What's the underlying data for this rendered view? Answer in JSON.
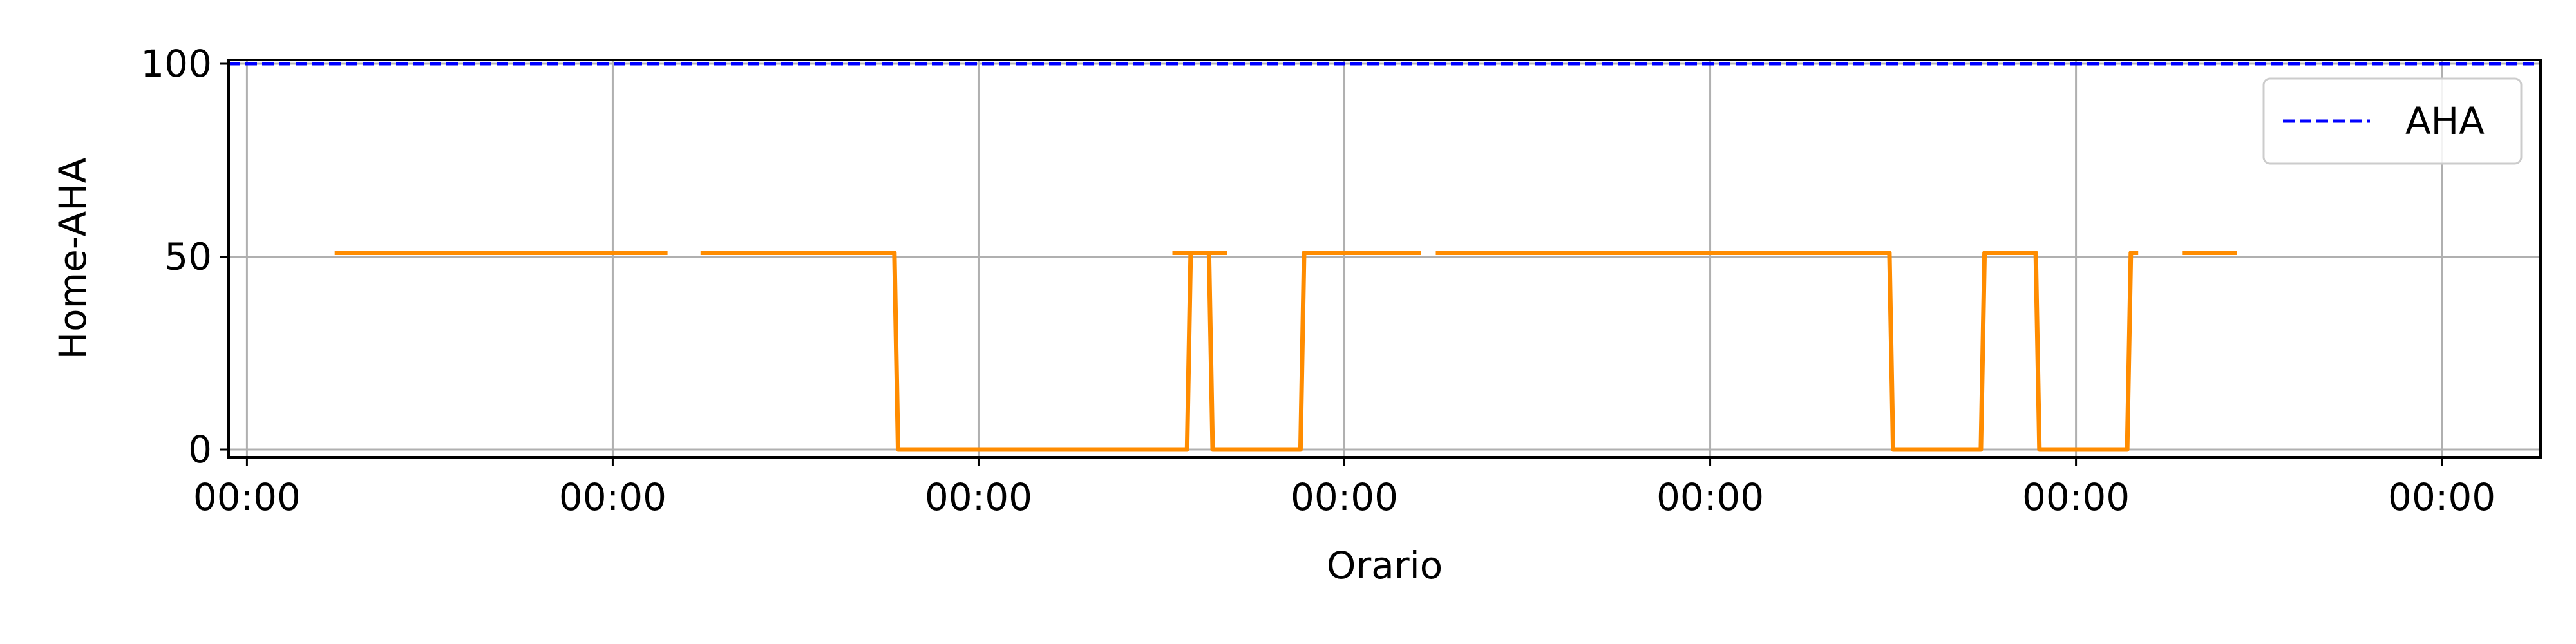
{
  "chart_data": {
    "type": "line",
    "title": "",
    "xlabel": "Orario",
    "ylabel": "Home-AHA",
    "xlim": [
      -0.05,
      6.27
    ],
    "ylim": [
      -2,
      101
    ],
    "x_ticks": [
      0,
      1,
      2,
      3,
      4,
      5,
      6
    ],
    "x_tick_labels": [
      "00:00",
      "00:00",
      "00:00",
      "00:00",
      "00:00",
      "00:00",
      "00:00"
    ],
    "y_ticks": [
      0,
      50,
      100
    ],
    "y_tick_labels": [
      "0",
      "50",
      "100"
    ],
    "grid": true,
    "legend_position": "upper right",
    "series": [
      {
        "name": "",
        "color": "#ff8c00",
        "style": "solid",
        "segments": [
          [
            [
              0.24,
              51
            ],
            [
              1.15,
              51
            ]
          ],
          [
            [
              1.24,
              51
            ],
            [
              1.77,
              51
            ],
            [
              1.78,
              0
            ],
            [
              2.57,
              0
            ],
            [
              2.58,
              51
            ],
            [
              2.68,
              51
            ]
          ],
          [
            [
              2.53,
              51
            ],
            [
              2.63,
              51
            ],
            [
              2.64,
              0
            ],
            [
              2.88,
              0
            ],
            [
              2.89,
              51
            ],
            [
              3.21,
              51
            ]
          ],
          [
            [
              3.25,
              51
            ],
            [
              4.49,
              51
            ],
            [
              4.5,
              0
            ],
            [
              4.74,
              0
            ],
            [
              4.75,
              51
            ],
            [
              4.89,
              51
            ],
            [
              4.9,
              0
            ],
            [
              5.14,
              0
            ],
            [
              5.15,
              51
            ],
            [
              5.17,
              51
            ]
          ],
          [
            [
              5.29,
              51
            ],
            [
              5.44,
              51
            ]
          ]
        ]
      },
      {
        "name": "AHA",
        "color": "#0000ff",
        "style": "dashed",
        "segments": [
          [
            [
              -0.05,
              100
            ],
            [
              6.27,
              100
            ]
          ]
        ]
      }
    ]
  }
}
